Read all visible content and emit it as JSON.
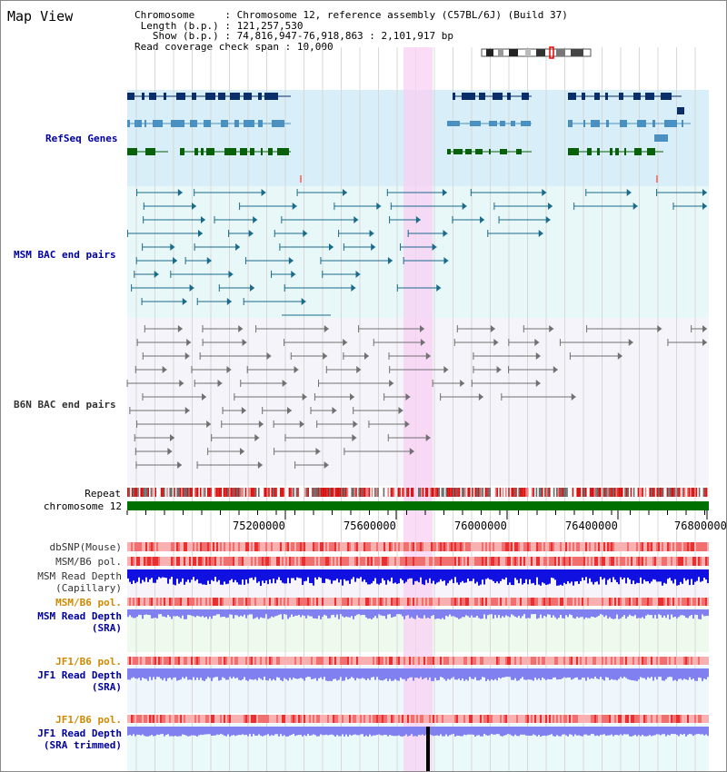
{
  "page": {
    "title": "Map View",
    "info": {
      "chromosome_label": "Chromosome",
      "chromosome_value": "Chromosome 12, reference assembly (C57BL/6J) (Build 37)",
      "length_label": "Length (b.p.)",
      "length_value": "121,257,530",
      "show_label": "Show (b.p.)",
      "show_value": "74,816,947-76,918,863 : 2,101,917 bp",
      "coverage_label": "Read coverage check span",
      "coverage_value": "10,000"
    }
  },
  "tracks": {
    "refseq": "RefSeq Genes",
    "msm_bac": "MSM BAC end pairs",
    "b6n_bac": "B6N BAC end pairs",
    "repeat": "Repeat",
    "chromosome": "chromosome 12",
    "dbsnp": "dbSNP(Mouse)",
    "msm_b6_pol_1": "MSM/B6 pol.",
    "msm_depth_cap_1": "MSM Read Depth",
    "msm_depth_cap_2": "(Capillary)",
    "msm_b6_pol_2": "MSM/B6 pol.",
    "msm_depth_sra_1": "MSM Read Depth",
    "msm_depth_sra_2": "(SRA)",
    "jf1_b6_pol_1": "JF1/B6 pol.",
    "jf1_depth_sra_1": "JF1 Read Depth",
    "jf1_depth_sra_2": "(SRA)",
    "jf1_b6_pol_2": "JF1/B6 pol.",
    "jf1_depth_trim_1": "JF1 Read Depth",
    "jf1_depth_trim_2": "(SRA trimmed)"
  },
  "ruler": {
    "ticks": [
      "75200000",
      "75600000",
      "76000000",
      "76400000",
      "76800000"
    ]
  },
  "colors": {
    "highlight": "#f8d0f4",
    "refseq_bg": "#d8eef8",
    "msm_bg": "#e8f8f8",
    "b6n_bg": "#f4f4fa",
    "gene_dark": "#0a2e6a",
    "gene_mid": "#4a90c0",
    "gene_green": "#086008",
    "bac_teal": "#1a6a8a",
    "bac_gray": "#707070",
    "chrom_green": "#007000",
    "depth_dark": "#1010e0",
    "depth_light": "#8080f0"
  }
}
